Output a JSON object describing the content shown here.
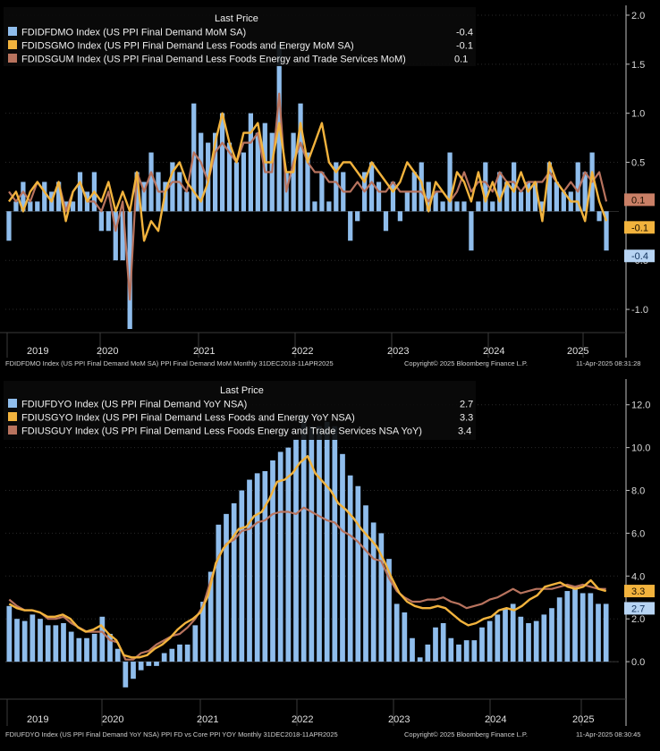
{
  "colors": {
    "background": "#000000",
    "bar": "#8fbdec",
    "orange": "#f2b33d",
    "rust": "#b8735e",
    "grid": "#2a2a2a",
    "axis": "#bfbfbf",
    "label_bar_bg": "#b7d4f3",
    "label_orange_bg": "#f2b33d",
    "label_rust_bg": "#c97f66"
  },
  "chart_data": [
    {
      "type": "bar",
      "title": "Last Price",
      "ylim": [
        -1.2,
        2.1
      ],
      "yticks": [
        "2.0",
        "1.5",
        "1.0",
        "0.5",
        "0.1",
        "-0.1",
        "-0.4",
        "-0.5",
        "-1.0"
      ],
      "ytick_values": [
        2.0,
        1.5,
        1.0,
        0.5,
        -0.5,
        -1.0
      ],
      "x_labels": [
        "2019",
        "2020",
        "2021",
        "2022",
        "2023",
        "2024",
        "2025"
      ],
      "legend": [
        {
          "name": "FDIDFDMO Index (US PPI Final Demand MoM SA)",
          "last": "-0.4",
          "color": "#8fbdec"
        },
        {
          "name": "FDIDSGMO Index (US PPI Final Demand Less Foods and Energy MoM SA)",
          "last": "-0.1",
          "color": "#f2b33d"
        },
        {
          "name": "FDIDSGUM Index (US PPI Final Demand Less Foods Energy and Trade Services MoM)",
          "last": "0.1",
          "color": "#b8735e"
        }
      ],
      "last_labels": [
        {
          "text": "0.1",
          "value": 0.1,
          "series": 2
        },
        {
          "text": "-0.1",
          "value": -0.1,
          "series": 1
        },
        {
          "text": "-0.4",
          "value": -0.4,
          "series": 0
        }
      ],
      "footer_left": "FDIDFDMO Index (US PPI Final Demand MoM SA) PPI Final Demand MoM  Monthly 31DEC2018-11APR2025",
      "footer_mid": "Copyright© 2025 Bloomberg Finance L.P.",
      "footer_right": "11-Apr-2025 08:31:28",
      "series": [
        {
          "name": "FDIDFDMO",
          "kind": "bar",
          "values": [
            -0.3,
            0.1,
            0.3,
            0.1,
            0.1,
            0.3,
            0.2,
            0.3,
            0.1,
            0.1,
            0.4,
            0.2,
            0.4,
            -0.2,
            -0.2,
            -0.5,
            -0.5,
            -1.2,
            0.4,
            0.3,
            0.6,
            0.4,
            0.3,
            0.5,
            0.4,
            0.2,
            1.1,
            0.8,
            0.7,
            0.8,
            1.0,
            0.7,
            0.5,
            0.6,
            1.0,
            0.8,
            0.9,
            0.8,
            1.7,
            0.4,
            0.8,
            1.1,
            0.6,
            0.1,
            0.4,
            0.1,
            0.5,
            0.4,
            -0.3,
            -0.1,
            0.4,
            0.5,
            0.3,
            -0.2,
            0.3,
            -0.1,
            0.2,
            0.4,
            0.5,
            0.3,
            0.2,
            0.1,
            0.6,
            0.1,
            0.1,
            -0.4,
            0.1,
            0.5,
            0.1,
            0.4,
            0.3,
            0.5,
            0.2,
            0.3,
            0.3,
            0.1,
            0.5,
            0.3,
            0.2,
            0.2,
            0.5,
            0.4,
            0.6,
            -0.1,
            -0.4
          ]
        },
        {
          "name": "FDIDSGMO",
          "kind": "line",
          "values": [
            0.1,
            0.2,
            0.0,
            0.2,
            0.3,
            0.2,
            0.1,
            0.3,
            -0.1,
            0.2,
            0.3,
            0.1,
            0.2,
            0.1,
            0.3,
            0.0,
            0.2,
            0.0,
            0.4,
            -0.3,
            -0.1,
            -0.2,
            0.2,
            0.4,
            0.5,
            0.3,
            0.2,
            0.1,
            0.3,
            0.7,
            1.0,
            0.7,
            0.5,
            0.8,
            0.8,
            0.9,
            0.5,
            0.5,
            0.9,
            0.4,
            0.4,
            0.9,
            0.5,
            0.7,
            0.9,
            0.5,
            0.4,
            0.5,
            0.5,
            0.4,
            0.3,
            0.5,
            0.4,
            0.3,
            0.2,
            0.3,
            0.5,
            0.4,
            0.3,
            0.0,
            0.3,
            0.2,
            0.1,
            0.4,
            0.3,
            0.1,
            0.4,
            0.1,
            0.3,
            0.1,
            0.3,
            0.2,
            0.4,
            0.2,
            0.3,
            -0.1,
            0.5,
            0.3,
            0.2,
            0.1,
            0.1,
            -0.1,
            0.4,
            0.1,
            -0.1
          ]
        },
        {
          "name": "FDIDSGUM",
          "kind": "line",
          "values": [
            0.2,
            0.1,
            0.2,
            0.1,
            0.3,
            0.2,
            0.1,
            0.3,
            0.0,
            0.2,
            0.3,
            0.1,
            0.1,
            0.0,
            0.2,
            -0.2,
            0.1,
            -0.9,
            0.4,
            0.2,
            0.4,
            0.2,
            0.2,
            0.3,
            0.3,
            0.2,
            0.6,
            0.5,
            0.3,
            0.6,
            0.7,
            0.6,
            0.5,
            0.7,
            0.7,
            0.8,
            0.4,
            0.4,
            1.2,
            0.2,
            0.5,
            0.7,
            0.5,
            0.4,
            0.4,
            0.3,
            0.3,
            0.2,
            0.2,
            0.3,
            0.2,
            0.3,
            0.2,
            0.2,
            0.3,
            0.2,
            0.2,
            0.2,
            0.2,
            0.1,
            0.2,
            0.2,
            0.1,
            0.2,
            0.4,
            0.2,
            0.3,
            0.3,
            0.2,
            0.4,
            0.3,
            0.3,
            0.2,
            0.3,
            0.3,
            0.3,
            0.4,
            0.3,
            0.2,
            0.3,
            0.2,
            0.4,
            0.3,
            0.4,
            0.1
          ]
        }
      ]
    },
    {
      "type": "bar",
      "title": "Last Price",
      "ylim": [
        -1.5,
        13.2
      ],
      "yticks": [
        "12.0",
        "10.0",
        "8.0",
        "6.0",
        "4.0",
        "3.3",
        "2.7",
        "2.0",
        "0.0"
      ],
      "ytick_values": [
        12,
        10,
        8,
        6,
        4,
        2,
        0
      ],
      "x_labels": [
        "2019",
        "2020",
        "2021",
        "2022",
        "2023",
        "2024",
        "2025"
      ],
      "legend": [
        {
          "name": "FDIUFDYO Index (US PPI Final Demand YoY NSA)",
          "last": "2.7",
          "color": "#8fbdec"
        },
        {
          "name": "FDIUSGYO Index (US PPI Final Demand Less Foods and Energy YoY NSA)",
          "last": "3.3",
          "color": "#f2b33d"
        },
        {
          "name": "FDIUSGUY Index (US PPI Final Demand Less Foods Energy and Trade Services NSA YoY)",
          "last": "3.4",
          "color": "#b8735e"
        }
      ],
      "last_labels": [
        {
          "text": "3.3",
          "value": 3.3,
          "series": 1
        },
        {
          "text": "2.7",
          "value": 2.7,
          "series": 0
        }
      ],
      "footer_left": "FDIUFDYO Index (US PPI Final Demand YoY NSA) PPI FD vs Core PPI YOY  Monthly 31DEC2018-11APR2025",
      "footer_mid": "Copyright© 2025 Bloomberg Finance L.P.",
      "footer_right": "11-Apr-2025 08:30:45",
      "series": [
        {
          "name": "FDIUFDYO",
          "kind": "bar",
          "values": [
            2.6,
            2.0,
            1.9,
            2.2,
            2.0,
            1.7,
            1.7,
            1.8,
            1.4,
            1.1,
            1.1,
            1.3,
            2.1,
            1.3,
            0.6,
            -1.2,
            -0.8,
            -0.4,
            -0.2,
            -0.2,
            0.4,
            0.6,
            0.8,
            0.8,
            1.7,
            2.8,
            4.2,
            6.4,
            6.9,
            7.4,
            8.0,
            8.5,
            8.8,
            8.9,
            9.4,
            9.8,
            10.0,
            10.4,
            11.5,
            11.0,
            11.0,
            11.2,
            11.0,
            9.7,
            8.7,
            8.2,
            7.3,
            6.5,
            6.0,
            4.8,
            2.7,
            2.3,
            1.1,
            0.2,
            0.8,
            1.6,
            1.8,
            1.1,
            0.8,
            1.0,
            1.0,
            1.6,
            1.9,
            2.2,
            2.5,
            2.7,
            2.1,
            1.8,
            1.9,
            2.2,
            2.5,
            3.0,
            3.3,
            3.5,
            3.2,
            3.2,
            2.7,
            2.7
          ]
        },
        {
          "name": "FDIUSGYO",
          "kind": "line",
          "values": [
            2.7,
            2.5,
            2.4,
            2.4,
            2.3,
            2.1,
            2.1,
            2.2,
            2.0,
            1.6,
            1.4,
            1.5,
            1.7,
            1.3,
            1.0,
            0.3,
            0.2,
            0.2,
            0.3,
            0.6,
            0.8,
            1.1,
            1.5,
            1.8,
            2.0,
            2.3,
            3.1,
            4.6,
            5.3,
            5.7,
            6.2,
            6.3,
            6.8,
            7.0,
            7.6,
            8.4,
            8.5,
            8.8,
            9.3,
            9.6,
            8.8,
            8.4,
            8.0,
            7.4,
            7.1,
            6.7,
            6.2,
            5.8,
            5.4,
            4.7,
            3.9,
            3.2,
            2.8,
            2.6,
            2.5,
            2.5,
            2.6,
            2.5,
            2.2,
            1.9,
            1.7,
            1.8,
            2.0,
            2.1,
            2.4,
            2.5,
            2.4,
            2.6,
            2.9,
            3.1,
            3.5,
            3.6,
            3.7,
            3.5,
            3.4,
            3.5,
            3.8,
            3.4,
            3.3
          ]
        },
        {
          "name": "FDIUSGUY",
          "kind": "line",
          "values": [
            2.9,
            2.6,
            2.4,
            2.4,
            2.3,
            2.0,
            2.0,
            2.1,
            1.8,
            1.6,
            1.4,
            1.4,
            1.4,
            1.0,
            0.9,
            0.1,
            0.1,
            0.4,
            0.5,
            0.8,
            1.0,
            1.2,
            1.3,
            1.6,
            2.0,
            2.6,
            3.8,
            4.9,
            5.5,
            5.7,
            6.1,
            6.2,
            6.5,
            6.6,
            6.9,
            7.0,
            7.0,
            6.9,
            7.2,
            7.0,
            6.8,
            6.6,
            6.5,
            6.1,
            5.9,
            5.6,
            5.2,
            4.8,
            4.7,
            3.9,
            3.3,
            3.0,
            2.8,
            2.8,
            2.9,
            2.9,
            3.0,
            2.8,
            2.7,
            2.5,
            2.6,
            2.7,
            2.9,
            3.0,
            3.2,
            3.4,
            3.2,
            3.3,
            3.4,
            3.4,
            3.4,
            3.5,
            3.6,
            3.5,
            3.6,
            3.5,
            3.4,
            3.4
          ]
        }
      ]
    }
  ]
}
